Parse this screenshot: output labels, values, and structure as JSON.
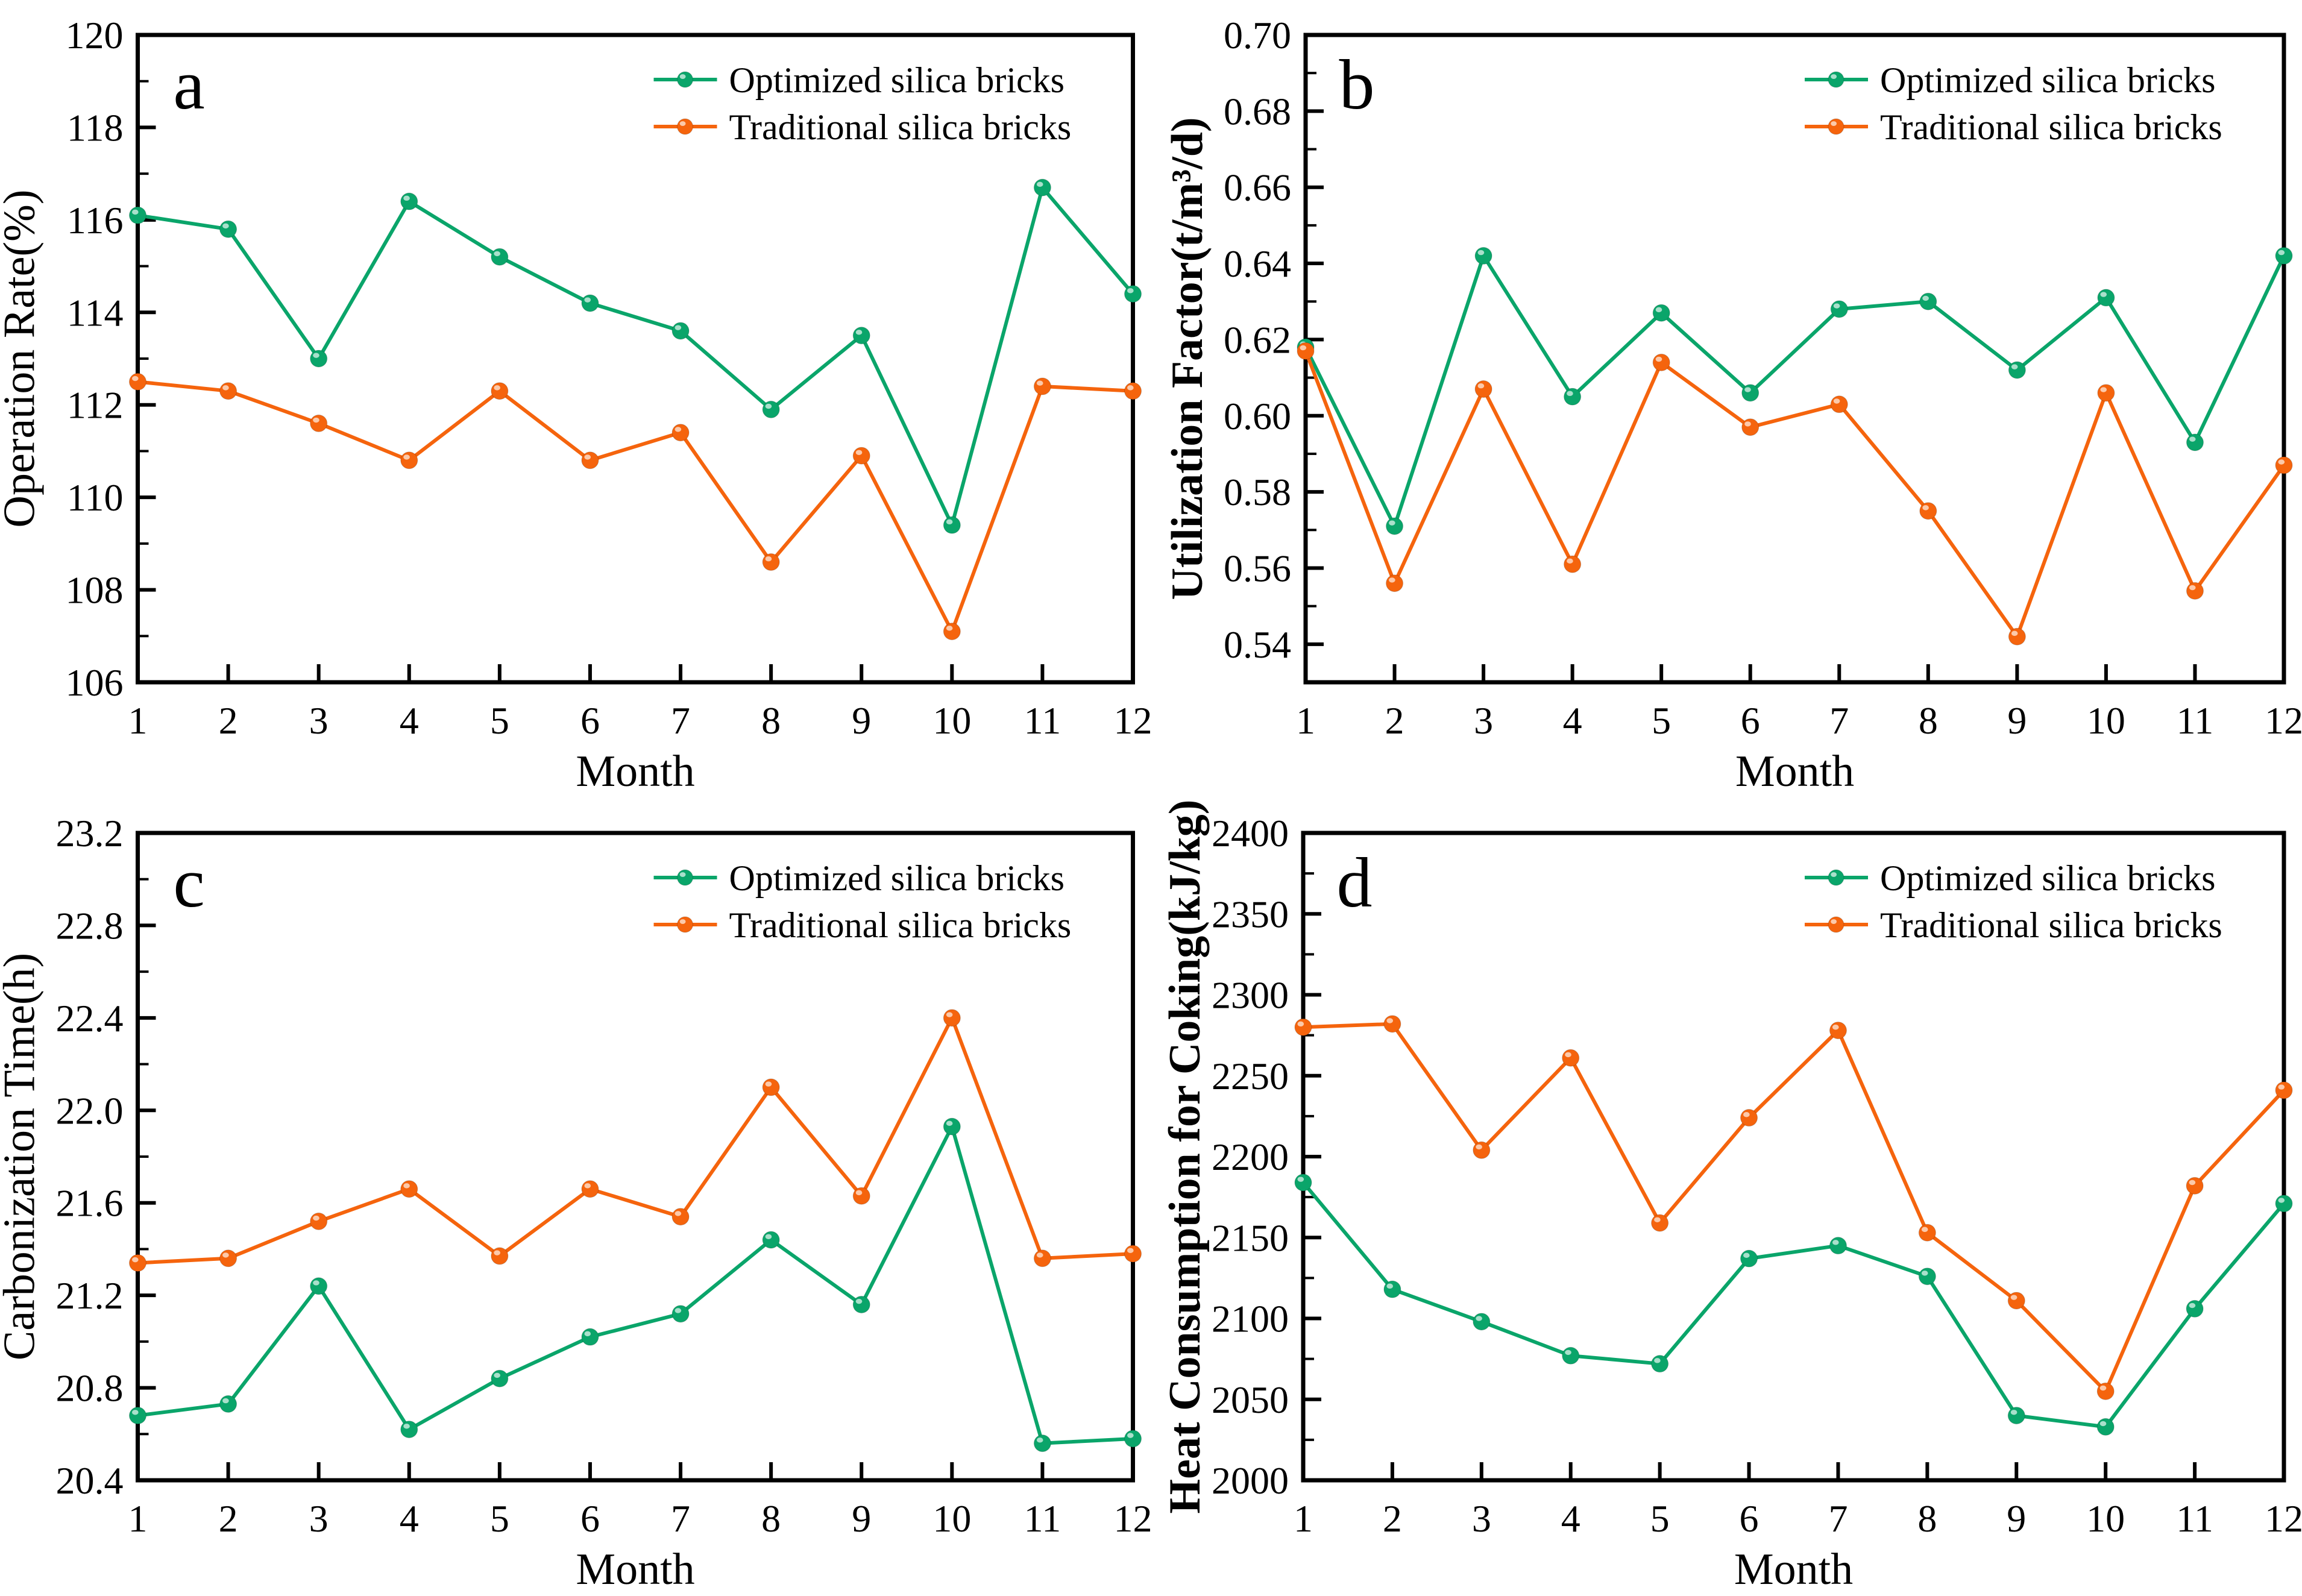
{
  "figure": {
    "background": "#ffffff",
    "axis_color": "#000000",
    "optimized_color": "#0aa56a",
    "traditional_color": "#f5640d",
    "legend_labels": [
      "Optimized silica bricks",
      "Traditional silica bricks"
    ]
  },
  "chart_data": [
    {
      "id": "a",
      "type": "line",
      "panel_label": "a",
      "xlabel": "Month",
      "ylabel": "Operation Rate(%)",
      "ylabel_bold": false,
      "x": [
        1,
        2,
        3,
        4,
        5,
        6,
        7,
        8,
        9,
        10,
        11,
        12
      ],
      "xlim": [
        1,
        12
      ],
      "ylim": [
        106,
        120
      ],
      "y_tick_start": 106,
      "y_major_step": 2,
      "y_minor_step": 1,
      "y_decimals": 0,
      "grid": false,
      "legend_position": "top-right",
      "series": [
        {
          "name": "Optimized silica bricks",
          "color": "#0aa56a",
          "values": [
            116.1,
            115.8,
            113.0,
            116.4,
            115.2,
            114.2,
            113.6,
            111.9,
            113.5,
            109.4,
            116.7,
            114.4
          ]
        },
        {
          "name": "Traditional silica bricks",
          "color": "#f5640d",
          "values": [
            112.5,
            112.3,
            111.6,
            110.8,
            112.3,
            110.8,
            111.4,
            108.6,
            110.9,
            107.1,
            112.4,
            112.3
          ]
        }
      ]
    },
    {
      "id": "b",
      "type": "line",
      "panel_label": "b",
      "xlabel": "Month",
      "ylabel": "Utilization Factor(t/m³/d)",
      "ylabel_bold": true,
      "x": [
        1,
        2,
        3,
        4,
        5,
        6,
        7,
        8,
        9,
        10,
        11,
        12
      ],
      "xlim": [
        1,
        12
      ],
      "ylim": [
        0.53,
        0.7
      ],
      "y_tick_start": 0.54,
      "y_major_step": 0.02,
      "y_minor_step": 0.01,
      "y_decimals": 2,
      "grid": false,
      "legend_position": "top-right",
      "series": [
        {
          "name": "Optimized silica bricks",
          "color": "#0aa56a",
          "values": [
            0.618,
            0.571,
            0.642,
            0.605,
            0.627,
            0.606,
            0.628,
            0.63,
            0.612,
            0.631,
            0.593,
            0.642
          ]
        },
        {
          "name": "Traditional silica bricks",
          "color": "#f5640d",
          "values": [
            0.617,
            0.556,
            0.607,
            0.561,
            0.614,
            0.597,
            0.603,
            0.575,
            0.542,
            0.606,
            0.554,
            0.587
          ]
        }
      ]
    },
    {
      "id": "c",
      "type": "line",
      "panel_label": "c",
      "xlabel": "Month",
      "ylabel": "Carbonization Time(h)",
      "ylabel_bold": false,
      "x": [
        1,
        2,
        3,
        4,
        5,
        6,
        7,
        8,
        9,
        10,
        11,
        12
      ],
      "xlim": [
        1,
        12
      ],
      "ylim": [
        20.4,
        23.2
      ],
      "y_tick_start": 20.4,
      "y_major_step": 0.4,
      "y_minor_step": 0.2,
      "y_decimals": 1,
      "grid": false,
      "legend_position": "top-right",
      "series": [
        {
          "name": "Optimized silica bricks",
          "color": "#0aa56a",
          "values": [
            20.68,
            20.73,
            21.24,
            20.62,
            20.84,
            21.02,
            21.12,
            21.44,
            21.16,
            21.93,
            20.56,
            20.58
          ]
        },
        {
          "name": "Traditional silica bricks",
          "color": "#f5640d",
          "values": [
            21.34,
            21.36,
            21.52,
            21.66,
            21.37,
            21.66,
            21.54,
            22.1,
            21.63,
            22.4,
            21.36,
            21.38
          ]
        }
      ]
    },
    {
      "id": "d",
      "type": "line",
      "panel_label": "d",
      "xlabel": "Month",
      "ylabel": "Heat Consumption for Coking(kJ/kg)",
      "ylabel_bold": true,
      "x": [
        1,
        2,
        3,
        4,
        5,
        6,
        7,
        8,
        9,
        10,
        11,
        12
      ],
      "xlim": [
        1,
        12
      ],
      "ylim": [
        2000,
        2400
      ],
      "y_tick_start": 2000,
      "y_major_step": 50,
      "y_minor_step": 25,
      "y_decimals": 0,
      "grid": false,
      "legend_position": "top-right",
      "series": [
        {
          "name": "Optimized silica bricks",
          "color": "#0aa56a",
          "values": [
            2184,
            2118,
            2098,
            2077,
            2072,
            2137,
            2145,
            2126,
            2040,
            2033,
            2106,
            2171
          ]
        },
        {
          "name": "Traditional silica bricks",
          "color": "#f5640d",
          "values": [
            2280,
            2282,
            2204,
            2261,
            2159,
            2224,
            2278,
            2153,
            2111,
            2055,
            2182,
            2241
          ]
        }
      ]
    }
  ]
}
